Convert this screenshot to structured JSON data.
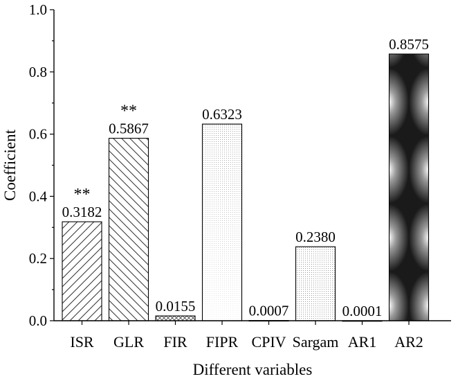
{
  "chart_data": {
    "type": "bar",
    "categories": [
      "ISR",
      "GLR",
      "FIR",
      "FIPR",
      "CPIV",
      "Sargam",
      "AR1",
      "AR2"
    ],
    "values": [
      0.3182,
      0.5867,
      0.0155,
      0.6323,
      0.0007,
      0.238,
      0.0001,
      0.8575
    ],
    "value_labels": [
      "0.3182",
      "0.5867",
      "0.0155",
      "0.6323",
      "0.0007",
      "0.2380",
      "0.0001",
      "0.8575"
    ],
    "significance": [
      "**",
      "**",
      "",
      "",
      "",
      "",
      "",
      ""
    ],
    "xlabel": "Different variables",
    "ylabel": "Coefficient",
    "ylim": [
      0,
      1.0
    ],
    "yticks": [
      "0.0",
      "0.2",
      "0.4",
      "0.6",
      "0.8",
      "1.0"
    ],
    "grid": false,
    "fills": [
      "hatch-forward",
      "hatch-back",
      "crosshatch",
      "light-dots",
      "none",
      "dots",
      "none",
      "dark-radial"
    ],
    "colors": {
      "line": "#000000",
      "background": "#ffffff",
      "dark_fill": "#1a1a1a",
      "light_fill": "#cccccc"
    }
  }
}
